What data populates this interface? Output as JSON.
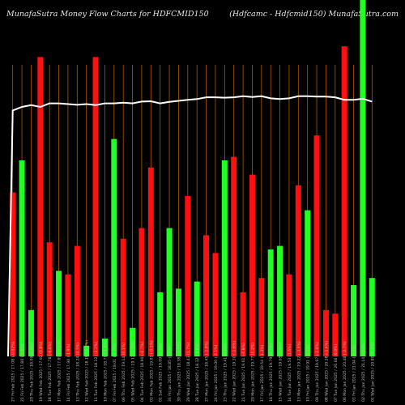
{
  "header": {
    "left": "MunafaSutra  Money Flow  Charts for HDFCMID150",
    "right": "(Hdfcamc -   Hdfcmid150) MunafaSutra.com"
  },
  "colors": {
    "background": "#000000",
    "grid": "#b05a00",
    "up": "#22ff22",
    "down": "#ff1010",
    "line": "#ffffff",
    "label": "#bbbbbb"
  },
  "chart_data": {
    "type": "bar",
    "title": "",
    "xlabel": "",
    "ylabel": "",
    "ylim": [
      0,
      100
    ],
    "categories": [
      "27 Fri Feb 2025 / 17.08 (-0.02%)",
      "21 Fri Feb 2025 / 17.80 (-1.6%)",
      "20 Thu Feb 2025 / 18.09 (0.9%)",
      "19 Wed Feb 2025 / 17.92 (0.8%)",
      "18 Tue Feb 2025 / 17.78 (-0.6%)",
      "17 Mon Feb 2025 / 17.89 (-0.1%)",
      "14 Fri Feb 2025 / 17.90 (-1.9%)",
      "13 Thu Feb 2025 / 18.24 (0.3%)",
      "12 Wed Feb 2025 / 18.19 (-0.7%)",
      "11 Tue Feb 2025 / 18.32 (-2.1%)",
      "10 Mon Feb 2025 / 18.71 (-1.6%)",
      "07 Fri Feb 2025 / 19.01 (-0.7%)",
      "06 Thu Feb 2025 / 19.14 (0.1%)",
      "05 Wed Feb 2025 / 19.12 (1.2%)",
      "04 Tue Feb 2025 / 18.90 (-0.7%)",
      "03 Mon Feb 2025 / 19.03 (-0.3%)",
      "01 Sat Feb 2025 / 19.09 (1.3%)",
      "31 Fri Jan 2025 / 18.85 (2.5%)",
      "30 Thu Jan 2025 / 18.38 (-0.3%)",
      "29 Wed Jan 2025 / 18.43 (1.7%)",
      "28 Tue Jan 2025 / 18.12 (-1.8%)",
      "27 Mon Jan 2025 / 18.45 (-2.9%)",
      "24 Fri Jan 2025 / 19.00 (-2.1%)",
      "23 Thu Jan 2025 / 19.41 (0.6%)",
      "22 Wed Jan 2025 / 19.30 (-1.6%)",
      "21 Tue Jan 2025 / 19.61 (-0.8%)",
      "20 Mon Jan 2025 / 19.77 (1.2%)",
      "17 Fri Jan 2025 / 19.54 (-1.3%)",
      "16 Thu Jan 2025 / 19.79 (0.7%)",
      "15 Wed Jan 2025 / 19.65 (0.6%)",
      "14 Tue Jan 2025 / 19.53 (1.6%)",
      "13 Mon Jan 2025 / 19.22 (-3.5%)",
      "10 Fri Jan 2025 / 19.91 (-0.3%)",
      "09 Thu Jan 2025 / 19.97 (-2.0%)",
      "08 Wed Jan 2025 / 20.38 (-1.4%)",
      "07 Tue Jan 2025 / 20.66 (0.9%)",
      "06 Mon Jan 2025 / 20.48 (-2.7%)",
      "03 Fri Jan 2025 / 21.04 (-0.5%)",
      "02 Thu Jan 2025 / 21.14 (1.6%)",
      "01 Wed Jan 2025 / 20.80 (0.2%)"
    ],
    "series": [
      {
        "type": "bar",
        "values": [
          46,
          55,
          13,
          84,
          32,
          24,
          23,
          31,
          3,
          84,
          5,
          61,
          33,
          8,
          36,
          53,
          18,
          36,
          19,
          45,
          21,
          34,
          29,
          55,
          56,
          18,
          51,
          22,
          30,
          31,
          23,
          48,
          41,
          62,
          13,
          12,
          87,
          20,
          100,
          22
        ],
        "colors": [
          "down",
          "up",
          "up",
          "down",
          "down",
          "up",
          "down",
          "down",
          "up",
          "down",
          "up",
          "up",
          "down",
          "up",
          "down",
          "down",
          "up",
          "up",
          "up",
          "down",
          "up",
          "down",
          "down",
          "up",
          "down",
          "down",
          "down",
          "down",
          "up",
          "up",
          "down",
          "down",
          "up",
          "down",
          "down",
          "down",
          "down",
          "up",
          "up",
          "up"
        ]
      },
      {
        "type": "line",
        "values": [
          69,
          70,
          70.5,
          70,
          71,
          71,
          70.8,
          70.6,
          70.8,
          70.5,
          71,
          71,
          71.2,
          71,
          71.5,
          71.6,
          71,
          71.4,
          71.7,
          72,
          72.2,
          72.7,
          72.7,
          72.6,
          72.7,
          73,
          72.8,
          73,
          72.4,
          72.2,
          72.4,
          73,
          73,
          72.9,
          72.9,
          72.7,
          72,
          72,
          72.3,
          71.5
        ]
      }
    ],
    "grid": true
  }
}
